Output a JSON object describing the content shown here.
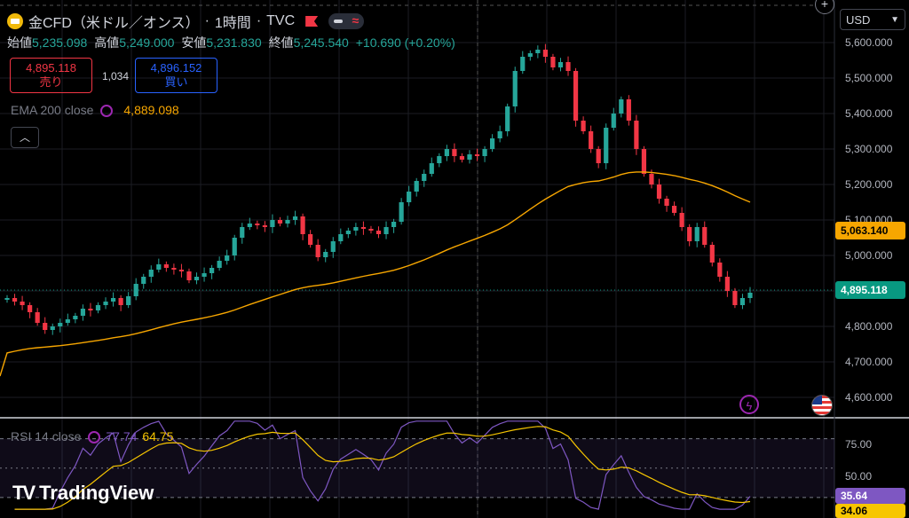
{
  "header": {
    "title": "金CFD（米ドル／オンス）",
    "interval": "1時間",
    "source": "TVC"
  },
  "ohlc": {
    "open_label": "始値",
    "open": "5,235.098",
    "high_label": "高値",
    "high": "5,249.000",
    "low_label": "安値",
    "low": "5,231.830",
    "close_label": "終値",
    "close": "5,245.540",
    "change": "+10.690 (+0.20%)"
  },
  "trade": {
    "sell_price": "4,895.118",
    "sell_label": "売り",
    "spread": "1,034",
    "buy_price": "4,896.152",
    "buy_label": "買い"
  },
  "ema": {
    "label": "EMA 200 close",
    "value": "4,889.098"
  },
  "currency": "USD",
  "price_axis": [
    "5,600.000",
    "5,500.000",
    "5,400.000",
    "5,300.000",
    "5,200.000",
    "5,100.000",
    "5,000.000",
    "4,900.000",
    "4,800.000",
    "4,700.000",
    "4,600.000"
  ],
  "price_tags": {
    "ema": "5,063.140",
    "last": "4,895.118"
  },
  "rsi": {
    "label": "RSI 14 close",
    "value": "77.74",
    "ma": "64.75",
    "axis": [
      "75.00",
      "50.00"
    ],
    "tag_rsi": "35.64",
    "tag_ma": "34.06"
  },
  "brand": "TradingView",
  "colors": {
    "up": "#26a69a",
    "down": "#f23645",
    "ema": "#f7a600",
    "rsi": "#7e57c2",
    "rsi_ma": "#f7c600"
  },
  "chart_data": {
    "type": "line",
    "closes": [
      4880,
      4870,
      4860,
      4840,
      4810,
      4790,
      4800,
      4810,
      4820,
      4830,
      4850,
      4845,
      4860,
      4870,
      4880,
      4860,
      4885,
      4920,
      4940,
      4960,
      4975,
      4965,
      4960,
      4955,
      4930,
      4940,
      4950,
      4965,
      4985,
      5000,
      5050,
      5080,
      5090,
      5085,
      5080,
      5100,
      5090,
      5100,
      5110,
      5060,
      5030,
      4995,
      5010,
      5040,
      5060,
      5070,
      5080,
      5075,
      5070,
      5060,
      5080,
      5095,
      5150,
      5180,
      5210,
      5230,
      5260,
      5280,
      5300,
      5280,
      5270,
      5285,
      5280,
      5300,
      5330,
      5350,
      5420,
      5520,
      5560,
      5570,
      5580,
      5560,
      5530,
      5545,
      5520,
      5380,
      5350,
      5300,
      5260,
      5360,
      5400,
      5440,
      5380,
      5300,
      5230,
      5200,
      5160,
      5140,
      5120,
      5080,
      5040,
      5080,
      5030,
      4980,
      4940,
      4900,
      4860,
      4880,
      4895
    ]
  }
}
